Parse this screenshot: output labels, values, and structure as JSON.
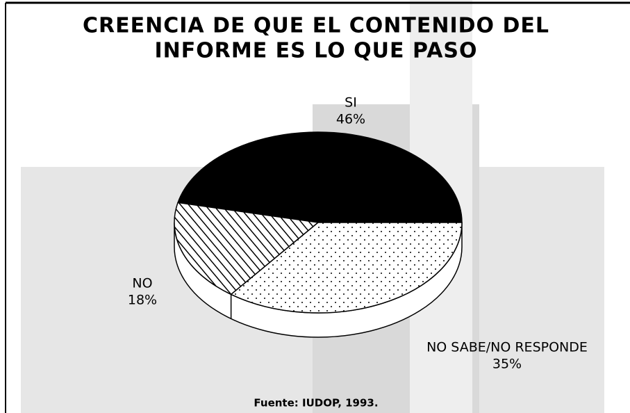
{
  "chart_data": {
    "type": "pie",
    "title": [
      "CREENCIA DE QUE EL CONTENIDO DEL",
      "INFORME ES LO QUE PASO"
    ],
    "categories": [
      "SI",
      "NO",
      "NO SABE/NO RESPONDE"
    ],
    "values": [
      46,
      18,
      35
    ],
    "value_labels": [
      "46%",
      "18%",
      "35%"
    ],
    "source": "Fuente: IUDOP, 1993."
  }
}
